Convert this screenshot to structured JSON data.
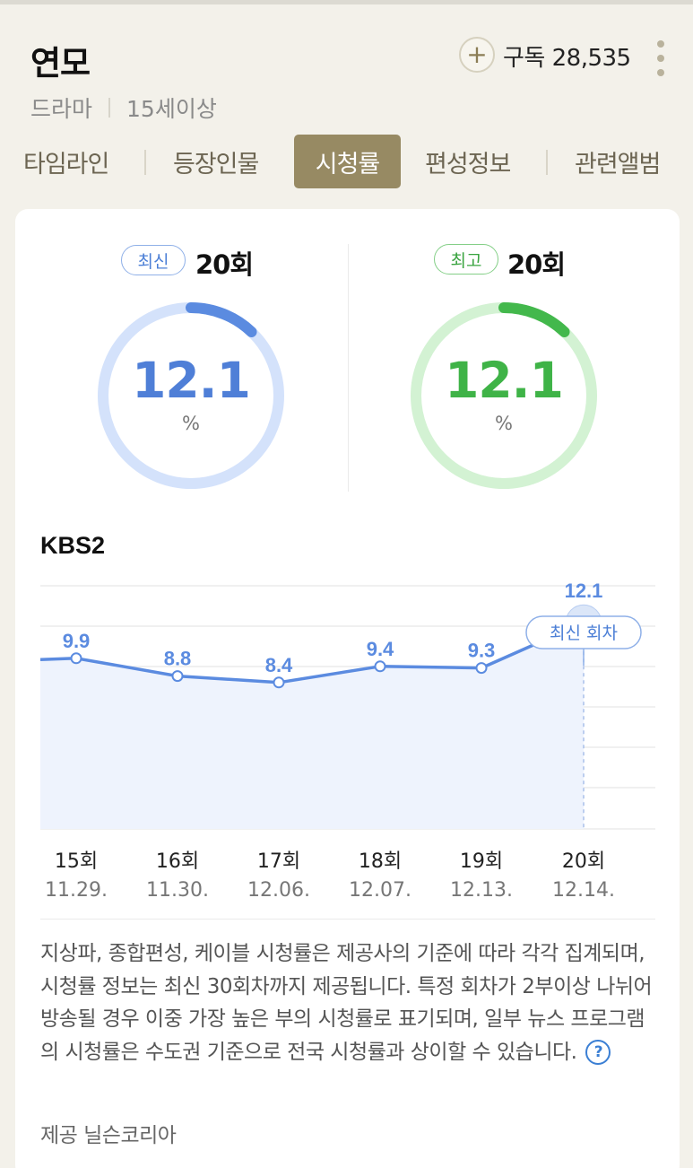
{
  "header": {
    "title": "연모",
    "subscribe_icon": "plus-icon",
    "subscribe_label": "구독 28,535",
    "genre": "드라마",
    "rating": "15세이상"
  },
  "tabs": [
    {
      "label": "타임라인",
      "active": false
    },
    {
      "label": "등장인물",
      "active": false
    },
    {
      "label": "시청률",
      "active": true
    },
    {
      "label": "편성정보",
      "active": false
    },
    {
      "label": "관련앨범",
      "active": false
    }
  ],
  "latest": {
    "badge": "최신",
    "episode": "20회",
    "value": "12.1",
    "unit": "%",
    "percent": 12.1,
    "color": "#5b8be0",
    "track": "#d4e2fb"
  },
  "best": {
    "badge": "최고",
    "episode": "20회",
    "value": "12.1",
    "unit": "%",
    "percent": 12.1,
    "color": "#43b84c",
    "track": "#d3f2d3"
  },
  "channel": "KBS2",
  "chart_data": {
    "type": "area",
    "categories": [
      "15회",
      "16회",
      "17회",
      "18회",
      "19회",
      "20회"
    ],
    "dates": [
      "11.29.",
      "11.30.",
      "12.06.",
      "12.07.",
      "12.13.",
      "12.14."
    ],
    "values": [
      9.9,
      8.8,
      8.4,
      9.4,
      9.3,
      12.1
    ],
    "value_labels": [
      "9.9",
      "8.8",
      "8.4",
      "9.4",
      "9.3",
      "12.1"
    ],
    "highlight_index": 5,
    "highlight_label": "최신 회차",
    "color": "#5b8be0",
    "fill": "#eef3fd",
    "grid": true
  },
  "note": "지상파, 종합편성, 케이블 시청률은 제공사의 기준에 따라 각각 집계되며, 시청률 정보는 최신 30회차까지 제공됩니다. 특정 회차가 2부이상 나뉘어 방송될 경우 이중 가장 높은 부의 시청률로 표기되며, 일부 뉴스 프로그램의 시청률은 수도권 기준으로 전국 시청률과 상이할 수 있습니다.",
  "help_icon": "question-circle-icon",
  "source": "제공 닐슨코리아"
}
